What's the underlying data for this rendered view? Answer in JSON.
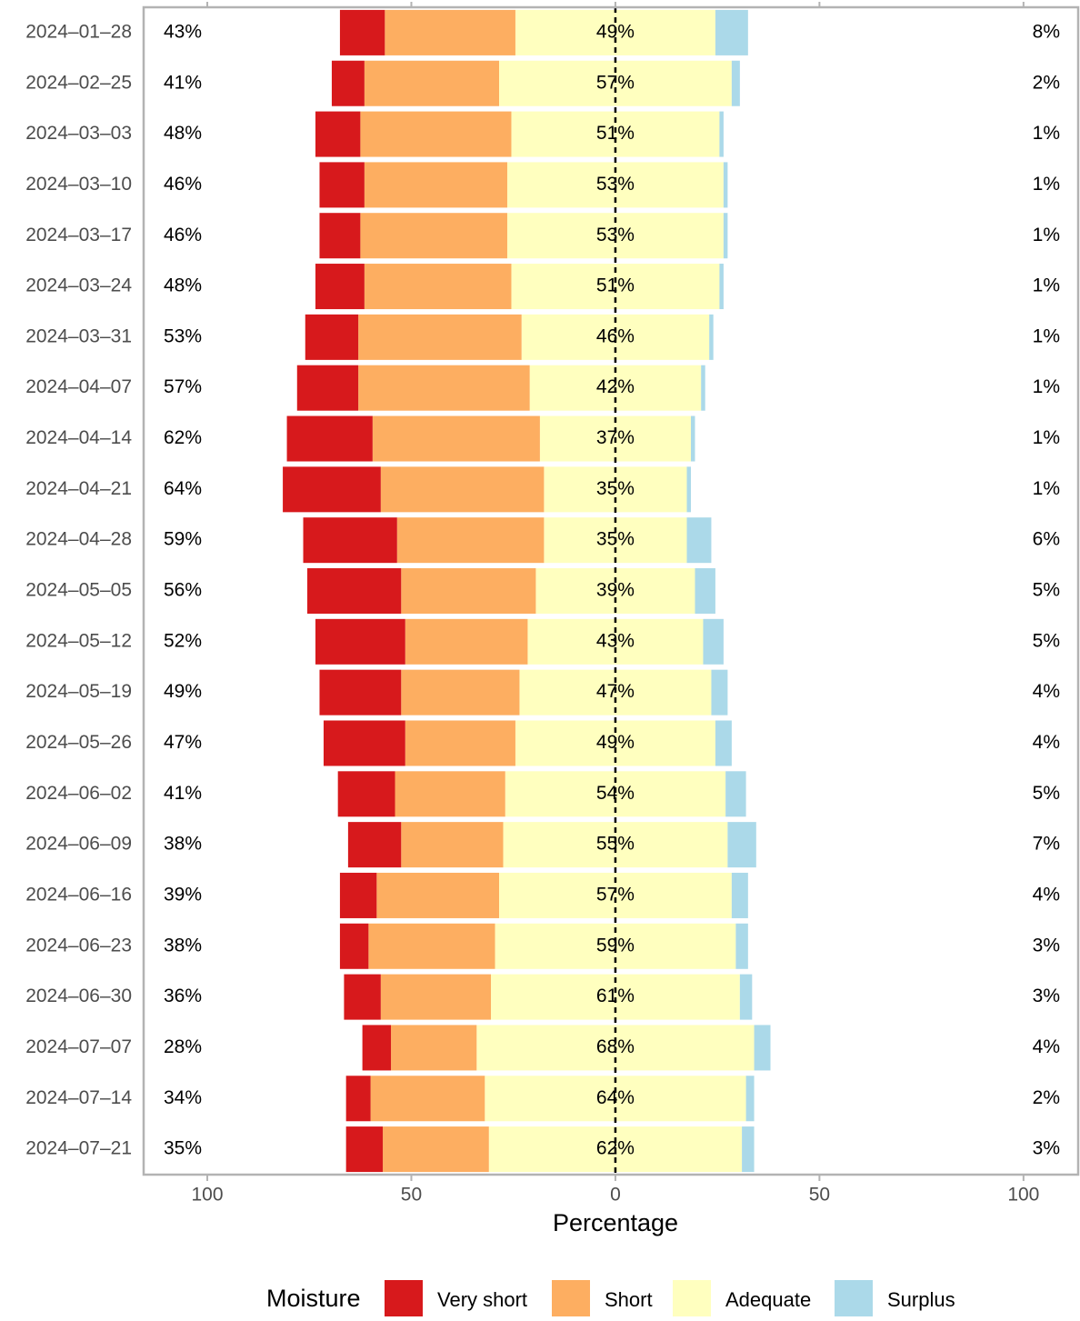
{
  "chart_data": {
    "type": "diverging-bar",
    "categories": [
      "2024–01–28",
      "2024–02–25",
      "2024–03–03",
      "2024–03–10",
      "2024–03–17",
      "2024–03–24",
      "2024–03–31",
      "2024–04–07",
      "2024–04–14",
      "2024–04–21",
      "2024–04–28",
      "2024–05–05",
      "2024–05–12",
      "2024–05–19",
      "2024–05–26",
      "2024–06–02",
      "2024–06–09",
      "2024–06–16",
      "2024–06–23",
      "2024–06–30",
      "2024–07–07",
      "2024–07–14",
      "2024–07–21"
    ],
    "series": [
      {
        "name": "Very short",
        "color": "#d7191c",
        "values": [
          11,
          8,
          11,
          11,
          10,
          12,
          13,
          15,
          21,
          24,
          23,
          23,
          22,
          20,
          20,
          14,
          13,
          9,
          7,
          9,
          7,
          6,
          9
        ]
      },
      {
        "name": "Short",
        "color": "#fdae61",
        "values": [
          32,
          33,
          37,
          35,
          36,
          36,
          40,
          42,
          41,
          40,
          36,
          33,
          30,
          29,
          27,
          27,
          25,
          30,
          31,
          27,
          21,
          28,
          26
        ]
      },
      {
        "name": "Adequate",
        "color": "#ffffbf",
        "values": [
          49,
          57,
          51,
          53,
          53,
          51,
          46,
          42,
          37,
          35,
          35,
          39,
          43,
          47,
          49,
          54,
          55,
          57,
          59,
          61,
          68,
          64,
          62
        ],
        "value_labels": [
          "49%",
          "57%",
          "51%",
          "53%",
          "53%",
          "51%",
          "46%",
          "42%",
          "37%",
          "35%",
          "35%",
          "39%",
          "43%",
          "47%",
          "49%",
          "54%",
          "55%",
          "57%",
          "59%",
          "61%",
          "68%",
          "64%",
          "62%"
        ]
      },
      {
        "name": "Surplus",
        "color": "#abd9e9",
        "values": [
          8,
          2,
          1,
          1,
          1,
          1,
          1,
          1,
          1,
          1,
          6,
          5,
          5,
          4,
          4,
          5,
          7,
          4,
          3,
          3,
          4,
          2,
          3
        ],
        "value_labels": [
          "8%",
          "2%",
          "1%",
          "1%",
          "1%",
          "1%",
          "1%",
          "1%",
          "1%",
          "1%",
          "6%",
          "5%",
          "5%",
          "4%",
          "4%",
          "5%",
          "7%",
          "4%",
          "3%",
          "3%",
          "4%",
          "2%",
          "3%"
        ]
      }
    ],
    "left_labels": [
      "43%",
      "41%",
      "48%",
      "46%",
      "46%",
      "48%",
      "53%",
      "57%",
      "62%",
      "64%",
      "59%",
      "56%",
      "52%",
      "49%",
      "47%",
      "41%",
      "38%",
      "39%",
      "38%",
      "36%",
      "28%",
      "34%",
      "35%"
    ],
    "xlabel": "Percentage",
    "xlim": [
      -115.6,
      113.4
    ],
    "xticks": [
      {
        "value": -100,
        "label": "100"
      },
      {
        "value": -50,
        "label": "50"
      },
      0,
      50,
      100
    ],
    "legend_title": "Moisture",
    "legend_position": "bottom"
  }
}
